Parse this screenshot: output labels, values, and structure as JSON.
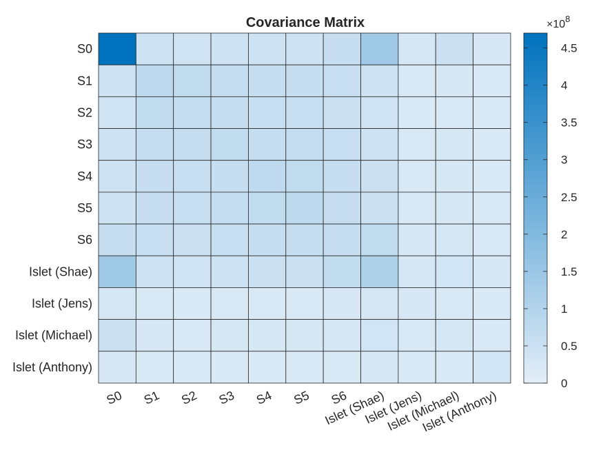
{
  "chart_data": {
    "type": "heatmap",
    "title": "Covariance Matrix",
    "row_labels": [
      "S0",
      "S1",
      "S2",
      "S3",
      "S4",
      "S5",
      "S6",
      "Islet (Shae)",
      "Islet (Jens)",
      "Islet (Michael)",
      "Islet (Anthony)"
    ],
    "col_labels": [
      "S0",
      "S1",
      "S2",
      "S3",
      "S4",
      "S5",
      "S6",
      "Islet (Shae)",
      "Islet (Jens)",
      "Islet (Michael)",
      "Islet (Anthony)"
    ],
    "values": [
      [
        4.7,
        0.45,
        0.4,
        0.45,
        0.45,
        0.45,
        0.6,
        1.4,
        0.3,
        0.5,
        0.25
      ],
      [
        0.45,
        0.8,
        0.7,
        0.65,
        0.6,
        0.6,
        0.55,
        0.45,
        0.22,
        0.25,
        0.2
      ],
      [
        0.4,
        0.7,
        0.65,
        0.6,
        0.55,
        0.55,
        0.5,
        0.4,
        0.2,
        0.22,
        0.18
      ],
      [
        0.45,
        0.65,
        0.6,
        0.7,
        0.6,
        0.65,
        0.55,
        0.45,
        0.22,
        0.24,
        0.2
      ],
      [
        0.45,
        0.6,
        0.55,
        0.6,
        0.75,
        0.7,
        0.6,
        0.5,
        0.22,
        0.24,
        0.2
      ],
      [
        0.45,
        0.6,
        0.55,
        0.65,
        0.7,
        0.8,
        0.6,
        0.5,
        0.22,
        0.24,
        0.2
      ],
      [
        0.6,
        0.55,
        0.5,
        0.55,
        0.6,
        0.6,
        0.6,
        0.7,
        0.25,
        0.28,
        0.22
      ],
      [
        1.4,
        0.45,
        0.4,
        0.45,
        0.5,
        0.5,
        0.7,
        1.1,
        0.28,
        0.35,
        0.25
      ],
      [
        0.3,
        0.22,
        0.2,
        0.22,
        0.22,
        0.22,
        0.25,
        0.28,
        0.25,
        0.22,
        0.18
      ],
      [
        0.5,
        0.25,
        0.22,
        0.24,
        0.24,
        0.24,
        0.28,
        0.35,
        0.22,
        0.3,
        0.2
      ],
      [
        0.25,
        0.2,
        0.18,
        0.2,
        0.2,
        0.2,
        0.22,
        0.25,
        0.18,
        0.2,
        0.35
      ]
    ],
    "value_scale_label": "×10^8",
    "colorbar": {
      "min": 0,
      "max": 4.7,
      "ticks": [
        0,
        0.5,
        1,
        1.5,
        2,
        2.5,
        3,
        3.5,
        4,
        4.5
      ],
      "tick_labels": [
        "0",
        "0.5",
        "1",
        "1.5",
        "2",
        "2.5",
        "3",
        "3.5",
        "4",
        "4.5"
      ],
      "exponent_prefix": "×10",
      "exponent": "8",
      "color_low": "#e3eef8",
      "color_high": "#0072bd"
    },
    "grid": true
  }
}
